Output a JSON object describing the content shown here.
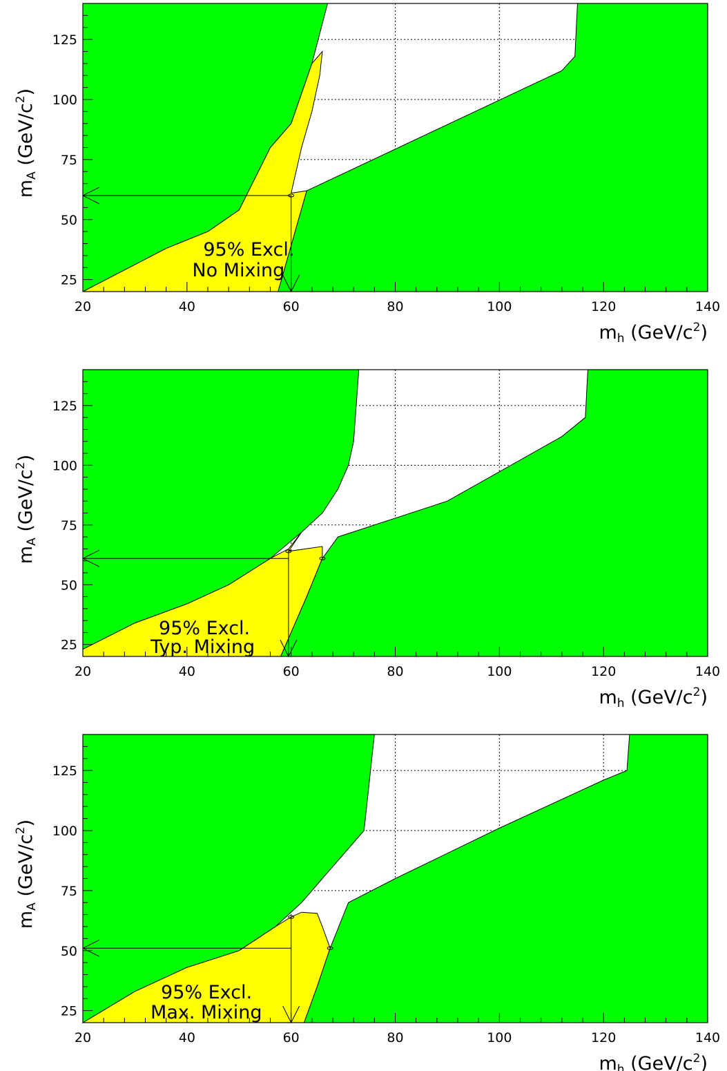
{
  "colors": {
    "excluded_green": "#00ff00",
    "excluded_yellow": "#ffff00",
    "allowed": "#ffffff",
    "line": "#000000",
    "grid": "#000000"
  },
  "chart_data": [
    {
      "type": "area",
      "xlabel": {
        "main": "m",
        "sub": "h",
        "unit": " (GeV/c",
        "sup": "2",
        "close": ")"
      },
      "ylabel": {
        "main": "m",
        "sub": "A",
        "unit": " (GeV/c",
        "sup": "2",
        "close": ")"
      },
      "xlim": [
        20,
        140
      ],
      "ylim": [
        20,
        140
      ],
      "x_ticks": [
        20,
        40,
        60,
        80,
        100,
        120,
        140
      ],
      "y_ticks": [
        25,
        50,
        75,
        100,
        125
      ],
      "grid": "dotted",
      "annotation": [
        "95% Excl.",
        "No Mixing"
      ],
      "regions": {
        "green_left": [
          [
            20,
            20
          ],
          [
            20,
            140
          ],
          [
            67,
            140
          ],
          [
            64,
            115
          ],
          [
            60,
            90
          ],
          [
            56,
            80
          ],
          [
            50,
            54
          ],
          [
            44,
            45
          ],
          [
            36,
            38
          ],
          [
            20,
            20
          ]
        ],
        "green_right": [
          [
            57.5,
            20
          ],
          [
            63,
            62
          ],
          [
            112,
            112
          ],
          [
            114.5,
            118
          ],
          [
            115,
            140
          ],
          [
            140,
            140
          ],
          [
            140,
            20
          ]
        ],
        "yellow": [
          [
            20,
            20
          ],
          [
            36,
            38
          ],
          [
            44,
            45
          ],
          [
            50,
            54
          ],
          [
            56,
            80
          ],
          [
            60,
            90
          ],
          [
            64,
            115
          ],
          [
            66,
            120
          ],
          [
            65.5,
            110
          ],
          [
            64,
            95
          ],
          [
            62,
            80
          ],
          [
            60,
            61
          ],
          [
            63,
            62
          ],
          [
            57.5,
            20
          ]
        ]
      },
      "limit_x": 60,
      "limit_y": 60,
      "markers": [
        [
          60,
          60
        ]
      ]
    },
    {
      "type": "area",
      "xlabel": {
        "main": "m",
        "sub": "h",
        "unit": " (GeV/c",
        "sup": "2",
        "close": ")"
      },
      "ylabel": {
        "main": "m",
        "sub": "A",
        "unit": " (GeV/c",
        "sup": "2",
        "close": ")"
      },
      "xlim": [
        20,
        140
      ],
      "ylim": [
        20,
        140
      ],
      "x_ticks": [
        20,
        40,
        60,
        80,
        100,
        120,
        140
      ],
      "y_ticks": [
        25,
        50,
        75,
        100,
        125
      ],
      "grid": "dotted",
      "annotation": [
        "95% Excl.",
        "Typ. Mixing"
      ],
      "regions": {
        "green_left": [
          [
            20,
            23
          ],
          [
            20,
            140
          ],
          [
            73,
            140
          ],
          [
            72,
            110
          ],
          [
            71,
            100
          ],
          [
            69,
            90
          ],
          [
            66,
            80
          ],
          [
            62,
            72
          ],
          [
            56,
            61
          ],
          [
            48,
            50
          ],
          [
            40,
            42
          ],
          [
            30,
            34
          ],
          [
            20,
            23
          ]
        ],
        "green_right": [
          [
            58,
            20
          ],
          [
            60,
            30
          ],
          [
            63,
            45
          ],
          [
            66,
            61
          ],
          [
            69,
            70
          ],
          [
            90,
            85
          ],
          [
            112,
            112
          ],
          [
            116.5,
            120
          ],
          [
            117,
            140
          ],
          [
            140,
            140
          ],
          [
            140,
            20
          ]
        ],
        "yellow": [
          [
            20,
            20
          ],
          [
            20,
            23
          ],
          [
            30,
            34
          ],
          [
            40,
            42
          ],
          [
            48,
            50
          ],
          [
            56,
            61
          ],
          [
            59.5,
            65
          ],
          [
            62,
            72
          ],
          [
            59.5,
            64
          ],
          [
            66,
            66
          ],
          [
            66,
            61
          ],
          [
            63,
            45
          ],
          [
            60,
            30
          ],
          [
            58,
            20
          ]
        ]
      },
      "limit_x": 59.5,
      "limit_y": 61,
      "markers": [
        [
          59.5,
          64
        ],
        [
          66,
          61
        ]
      ]
    },
    {
      "type": "area",
      "xlabel": {
        "main": "m",
        "sub": "h",
        "unit": " (GeV/c",
        "sup": "2",
        "close": ")"
      },
      "ylabel": {
        "main": "m",
        "sub": "A",
        "unit": " (GeV/c",
        "sup": "2",
        "close": ")"
      },
      "xlim": [
        20,
        140
      ],
      "ylim": [
        20,
        140
      ],
      "x_ticks": [
        20,
        40,
        60,
        80,
        100,
        120,
        140
      ],
      "y_ticks": [
        25,
        50,
        75,
        100,
        125
      ],
      "grid": "dotted",
      "annotation": [
        "95% Excl.",
        "Max. Mixing"
      ],
      "regions": {
        "green_left": [
          [
            20,
            20
          ],
          [
            20,
            140
          ],
          [
            76,
            140
          ],
          [
            75,
            120
          ],
          [
            74,
            100
          ],
          [
            70,
            90
          ],
          [
            66,
            80
          ],
          [
            62,
            70
          ],
          [
            57,
            60
          ],
          [
            50,
            50
          ],
          [
            40,
            43
          ],
          [
            30,
            33
          ],
          [
            20,
            20
          ]
        ],
        "green_right": [
          [
            62.5,
            20
          ],
          [
            65,
            35
          ],
          [
            67.5,
            51
          ],
          [
            71,
            70
          ],
          [
            80,
            80
          ],
          [
            100,
            101
          ],
          [
            120,
            121
          ],
          [
            124.5,
            125
          ],
          [
            125,
            140
          ],
          [
            140,
            140
          ],
          [
            140,
            20
          ]
        ],
        "yellow": [
          [
            20,
            20
          ],
          [
            30,
            33
          ],
          [
            40,
            43
          ],
          [
            50,
            50
          ],
          [
            57,
            60
          ],
          [
            60,
            64
          ],
          [
            62,
            66
          ],
          [
            65,
            65.5
          ],
          [
            66,
            60
          ],
          [
            67.5,
            51
          ],
          [
            65,
            35
          ],
          [
            62.5,
            20
          ]
        ]
      },
      "limit_x": 60,
      "limit_y": 51,
      "markers": [
        [
          60,
          64
        ],
        [
          67.5,
          51
        ]
      ]
    }
  ]
}
